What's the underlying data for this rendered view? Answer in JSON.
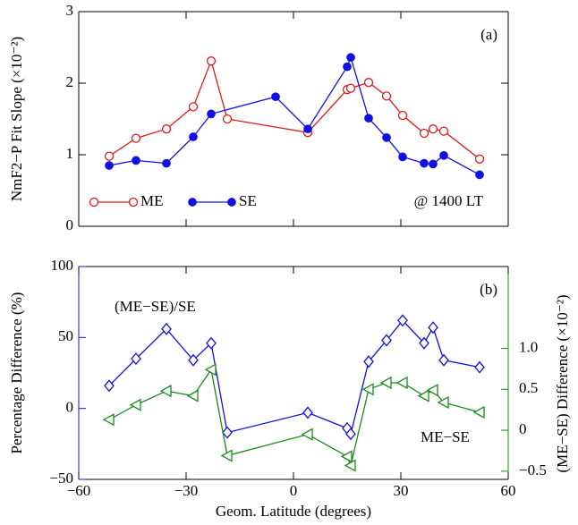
{
  "chart_data": [
    {
      "type": "line",
      "ylabel": "NmF2−P Fit Slope (×10⁻²)",
      "xlim": [
        -60,
        60
      ],
      "ylim": [
        0,
        3
      ],
      "yticks": [
        0,
        1,
        2,
        3
      ],
      "annotations": [
        "(a)",
        "@ 1400 LT"
      ],
      "series": [
        {
          "name": "ME",
          "color": "#e0191e",
          "marker": "open-circle",
          "x": [
            -51.5,
            -44,
            -35.5,
            -28,
            -23,
            -18.5,
            4,
            15,
            16,
            21,
            26,
            30.5,
            36.5,
            39,
            42,
            52
          ],
          "values": [
            0.98,
            1.23,
            1.36,
            1.67,
            2.31,
            1.5,
            1.31,
            1.91,
            1.93,
            2.01,
            1.82,
            1.55,
            1.3,
            1.36,
            1.33,
            0.94
          ]
        },
        {
          "name": "SE",
          "color": "#1010e0",
          "marker": "filled-circle",
          "x": [
            -51.5,
            -44,
            -35.5,
            -28,
            -23,
            -5,
            4,
            15,
            16,
            21,
            26,
            30.5,
            36.5,
            39,
            42,
            52
          ],
          "values": [
            0.85,
            0.92,
            0.88,
            1.25,
            1.57,
            1.81,
            1.36,
            2.23,
            2.36,
            1.51,
            1.24,
            0.97,
            0.88,
            0.87,
            0.99,
            0.72
          ]
        }
      ]
    },
    {
      "type": "line",
      "xlabel": "Geom. Latitude (degrees)",
      "ylabel": "Percentage Difference (%)",
      "y2label": "(ME−SE) Difference (×10⁻²)",
      "xlim": [
        -60,
        60
      ],
      "xticks": [
        {
          "value": -60,
          "label": "−60"
        },
        {
          "value": -30,
          "label": "−30"
        },
        0,
        30,
        60
      ],
      "ylim": [
        -50,
        100
      ],
      "yticks": [
        {
          "value": -50,
          "label": "−50"
        },
        0,
        50,
        100
      ],
      "y2lim": [
        -0.6,
        2.0
      ],
      "y2ticks": [
        {
          "value": -0.5,
          "label": "−0.5"
        },
        0,
        0.5,
        {
          "value": 1,
          "label": "1.0"
        }
      ],
      "annotations": [
        "(b)"
      ],
      "series": [
        {
          "name": "(ME−SE)/SE",
          "color": "#1010e0",
          "marker": "open-diamond",
          "x": [
            -51.5,
            -44,
            -35.5,
            -28,
            -23,
            -18.5,
            4,
            15,
            16,
            21,
            26,
            30.5,
            36.5,
            39,
            42,
            52
          ],
          "values": [
            16,
            35,
            56,
            34,
            46,
            -17,
            -3,
            -14,
            -18,
            33,
            48,
            62,
            46,
            57,
            34,
            29
          ]
        },
        {
          "name": "ME−SE",
          "color": "#1a8a1a",
          "marker": "open-triangle-left",
          "axis": "y2",
          "x": [
            -51.5,
            -44,
            -35.5,
            -28,
            -23,
            -18.5,
            4,
            15,
            16,
            21,
            26,
            30.5,
            36.5,
            39,
            42,
            52
          ],
          "values": [
            0.13,
            0.31,
            0.48,
            0.42,
            0.74,
            -0.31,
            -0.05,
            -0.32,
            -0.43,
            0.5,
            0.58,
            0.58,
            0.42,
            0.49,
            0.34,
            0.22
          ]
        }
      ]
    }
  ]
}
